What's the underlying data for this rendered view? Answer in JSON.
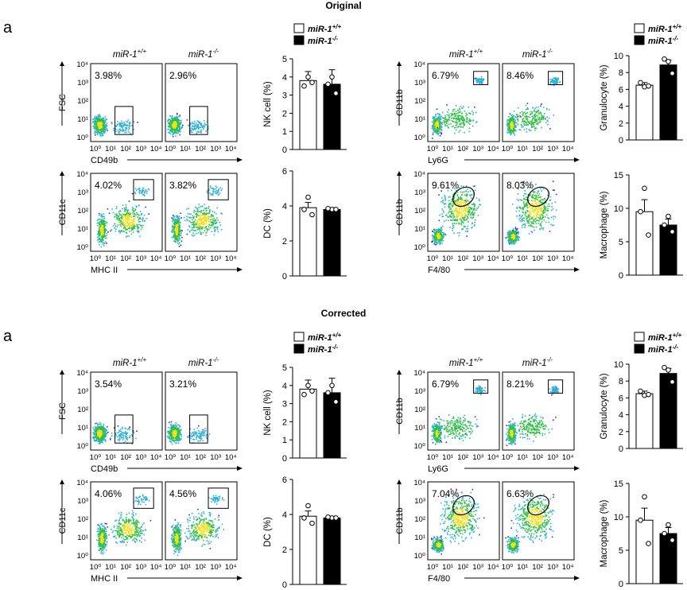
{
  "sections": [
    {
      "title": "Original",
      "panel_letter": "a",
      "flow_rows": [
        {
          "y_label": "FSC",
          "x_label": "CD49b",
          "percents": [
            "3.98%",
            "2.96%"
          ]
        },
        {
          "y_label": "CD11c",
          "x_label": "MHC II",
          "percents": [
            "4.02%",
            "3.82%"
          ]
        },
        {
          "y_label": "CD11b",
          "x_label": "Ly6G",
          "percents": [
            "6.79%",
            "8.46%"
          ]
        },
        {
          "y_label": "CD11b",
          "x_label": "F4/80",
          "percents": [
            "9.61%",
            "8.03%"
          ]
        }
      ],
      "bar_charts": [
        {
          "ylabel": "NK cell (%)",
          "yticks": [
            "0",
            "1",
            "2",
            "3",
            "4",
            "5"
          ],
          "ylim": [
            0,
            5
          ],
          "values": [
            3.8,
            3.6
          ],
          "errors": [
            0.5,
            0.8
          ],
          "points": [
            [
              4.0,
              3.5,
              3.7
            ],
            [
              4.0,
              3.6,
              3.1
            ]
          ]
        },
        {
          "ylabel": "DC (%)",
          "yticks": [
            "0",
            "2",
            "4",
            "6"
          ],
          "ylim": [
            0,
            6
          ],
          "values": [
            3.9,
            3.8
          ],
          "errors": [
            0.3,
            0.1
          ],
          "points": [
            [
              4.5,
              3.8,
              3.5
            ],
            [
              3.8,
              3.85,
              3.8
            ]
          ]
        },
        {
          "ylabel": "Granulocyte (%)",
          "yticks": [
            "0",
            "2",
            "4",
            "6",
            "8",
            "10"
          ],
          "ylim": [
            0,
            10
          ],
          "values": [
            6.5,
            8.9
          ],
          "errors": [
            0.3,
            0.6
          ],
          "points": [
            [
              6.3,
              6.8,
              6.4
            ],
            [
              9.3,
              9.6,
              7.9
            ]
          ]
        },
        {
          "ylabel": "Macrophage (%)",
          "yticks": [
            "0",
            "5",
            "10",
            "15"
          ],
          "ylim": [
            0,
            15
          ],
          "values": [
            9.5,
            7.5
          ],
          "errors": [
            1.8,
            0.9
          ],
          "points": [
            [
              13.0,
              9.5,
              6.0
            ],
            [
              8.8,
              7.5,
              6.5
            ]
          ]
        }
      ]
    },
    {
      "title": "Corrected",
      "panel_letter": "a",
      "flow_rows": [
        {
          "y_label": "FSC",
          "x_label": "CD49b",
          "percents": [
            "3.54%",
            "3.21%"
          ]
        },
        {
          "y_label": "CD11c",
          "x_label": "MHC II",
          "percents": [
            "4.06%",
            "4.56%"
          ]
        },
        {
          "y_label": "CD11b",
          "x_label": "Ly6G",
          "percents": [
            "6.79%",
            "8.21%"
          ]
        },
        {
          "y_label": "CD11b",
          "x_label": "F4/80",
          "percents": [
            "7.04%",
            "6.63%"
          ]
        }
      ],
      "bar_charts": [
        {
          "ylabel": "NK cell (%)",
          "yticks": [
            "0",
            "1",
            "2",
            "3",
            "4",
            "5"
          ],
          "ylim": [
            0,
            5
          ],
          "values": [
            3.8,
            3.6
          ],
          "errors": [
            0.5,
            0.8
          ],
          "points": [
            [
              4.0,
              3.5,
              3.7
            ],
            [
              4.0,
              3.6,
              3.1
            ]
          ]
        },
        {
          "ylabel": "DC (%)",
          "yticks": [
            "0",
            "2",
            "4",
            "6"
          ],
          "ylim": [
            0,
            6
          ],
          "values": [
            3.9,
            3.8
          ],
          "errors": [
            0.3,
            0.1
          ],
          "points": [
            [
              4.5,
              3.8,
              3.5
            ],
            [
              3.8,
              3.85,
              3.8
            ]
          ]
        },
        {
          "ylabel": "Granulocyte (%)",
          "yticks": [
            "0",
            "2",
            "4",
            "6",
            "8",
            "10"
          ],
          "ylim": [
            0,
            10
          ],
          "values": [
            6.5,
            8.9
          ],
          "errors": [
            0.3,
            0.6
          ],
          "points": [
            [
              6.3,
              6.8,
              6.4
            ],
            [
              9.3,
              9.6,
              7.9
            ]
          ]
        },
        {
          "ylabel": "Macrophage (%)",
          "yticks": [
            "0",
            "5",
            "10",
            "15"
          ],
          "ylim": [
            0,
            15
          ],
          "values": [
            9.5,
            7.5
          ],
          "errors": [
            1.8,
            0.9
          ],
          "points": [
            [
              13.0,
              9.5,
              6.0
            ],
            [
              8.8,
              7.5,
              6.5
            ]
          ]
        }
      ]
    }
  ],
  "genotype_labels": [
    "miR-1",
    "miR-1"
  ],
  "genotype_superscripts": [
    "+/+",
    "-/-"
  ],
  "flow_axis_ticks": [
    "10⁰",
    "10¹",
    "10²",
    "10³",
    "10⁴"
  ],
  "colors": {
    "wt_bar": "#ffffff",
    "ko_bar": "#000000",
    "dot_low": "#2a3a9e",
    "dot_mid": "#2bb0d8",
    "dot_hi": "#2fbf4a",
    "dot_core": "#f0e020"
  },
  "chart_data": [
    {
      "type": "bar",
      "title": "",
      "xlabel": "",
      "ylabel": "NK cell (%)",
      "categories": [
        "miR-1+/+",
        "miR-1-/-"
      ],
      "values": [
        3.8,
        3.6
      ],
      "ylim": [
        0,
        5
      ]
    },
    {
      "type": "bar",
      "title": "",
      "xlabel": "",
      "ylabel": "DC (%)",
      "categories": [
        "miR-1+/+",
        "miR-1-/-"
      ],
      "values": [
        3.9,
        3.8
      ],
      "ylim": [
        0,
        6
      ]
    },
    {
      "type": "bar",
      "title": "",
      "xlabel": "",
      "ylabel": "Granulocyte (%)",
      "categories": [
        "miR-1+/+",
        "miR-1-/-"
      ],
      "values": [
        6.5,
        8.9
      ],
      "ylim": [
        0,
        10
      ]
    },
    {
      "type": "bar",
      "title": "",
      "xlabel": "",
      "ylabel": "Macrophage (%)",
      "categories": [
        "miR-1+/+",
        "miR-1-/-"
      ],
      "values": [
        9.5,
        7.5
      ],
      "ylim": [
        0,
        15
      ]
    }
  ]
}
